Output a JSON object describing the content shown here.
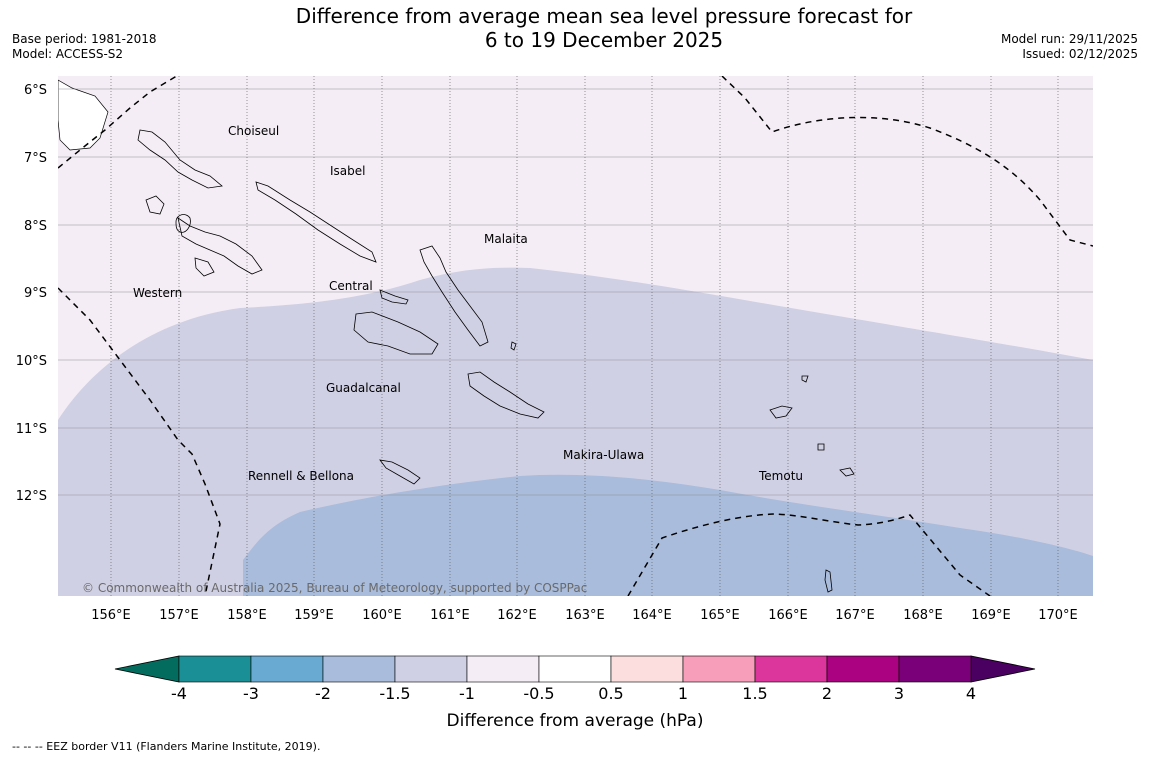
{
  "header": {
    "title_line1": "Difference from average mean sea level pressure forecast for",
    "title_line2": "6 to 19 December 2025",
    "base_period": "Base period: 1981-2018",
    "model": "Model: ACCESS-S2",
    "model_run": "Model run: 29/11/2025",
    "issued": "Issued: 02/12/2025"
  },
  "map": {
    "latitude_labels": [
      "6°S",
      "7°S",
      "8°S",
      "9°S",
      "10°S",
      "11°S",
      "12°S"
    ],
    "longitude_labels": [
      "156°E",
      "157°E",
      "158°E",
      "159°E",
      "160°E",
      "161°E",
      "162°E",
      "163°E",
      "164°E",
      "165°E",
      "166°E",
      "167°E",
      "168°E",
      "169°E",
      "170°E"
    ],
    "regions": [
      "Choiseul",
      "Isabel",
      "Malaita",
      "Western",
      "Central",
      "Guadalcanal",
      "Makira-Ulawa",
      "Rennell & Bellona",
      "Temotu"
    ],
    "copyright": "© Commonwealth of Australia 2025, Bureau of Meteorology, supported by COSPPac",
    "shading": [
      {
        "range": "-1 to -0.5",
        "color": "#f4edf5"
      },
      {
        "range": "-1.5 to -1",
        "color": "#d0d0e4"
      },
      {
        "range": "-2 to -1.5",
        "color": "#a9bcdb"
      }
    ]
  },
  "colorbar": {
    "title": "Difference from average (hPa)",
    "tick_labels": [
      "-4",
      "-3",
      "-2",
      "-1.5",
      "-1",
      "-0.5",
      "0.5",
      "1",
      "1.5",
      "2",
      "3",
      "4"
    ],
    "colors": [
      "#1b8f96",
      "#69aad3",
      "#a9bcdb",
      "#d0d0e4",
      "#f4edf5",
      "#ffffff",
      "#fddede",
      "#f79eba",
      "#dc359c",
      "#ab0282",
      "#7a0079"
    ],
    "under_color": "#046c5e",
    "over_color": "#4a0060"
  },
  "footnote": "--  --  -- EEZ border V11 (Flanders Marine Institute, 2019)."
}
